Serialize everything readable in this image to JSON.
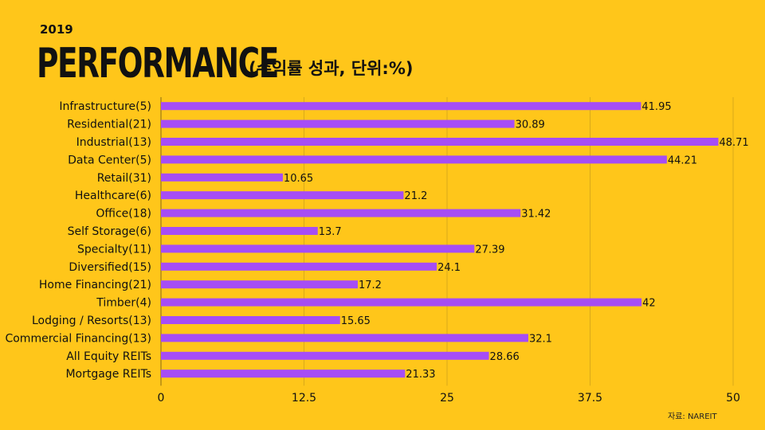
{
  "header": {
    "year": "2019",
    "title": "PERFORMANCE",
    "subtitle": "(수익률 성과, 단위:%)"
  },
  "source": "자료: NAREIT",
  "colors": {
    "background": "#FFC61A",
    "bar": "#A64DF5",
    "grid": "#D9A91A"
  },
  "chart_data": {
    "type": "bar",
    "orientation": "horizontal",
    "categories": [
      "Infrastructure(5)",
      "Residential(21)",
      "Industrial(13)",
      "Data Center(5)",
      "Retail(31)",
      "Healthcare(6)",
      "Office(18)",
      "Self Storage(6)",
      "Specialty(11)",
      "Diversified(15)",
      "Home Financing(21)",
      "Timber(4)",
      "Lodging / Resorts(13)",
      "Commercial Financing(13)",
      "All Equity REITs",
      "Mortgage REITs"
    ],
    "values": [
      41.95,
      30.89,
      48.71,
      44.21,
      10.65,
      21.2,
      31.42,
      13.7,
      27.39,
      24.1,
      17.2,
      42,
      15.65,
      32.1,
      28.66,
      21.33
    ],
    "value_labels": [
      "41.95",
      "30.89",
      "48.71",
      "44.21",
      "10.65",
      "21.2",
      "31.42",
      "13.7",
      "27.39",
      "24.1",
      "17.2",
      "42",
      "15.65",
      "32.1",
      "28.66",
      "21.33"
    ],
    "xlim": [
      0,
      50
    ],
    "ticks": [
      0,
      12.5,
      25,
      37.5,
      50
    ],
    "tick_labels": [
      "0",
      "12.5",
      "25",
      "37.5",
      "50"
    ],
    "grid": true
  }
}
